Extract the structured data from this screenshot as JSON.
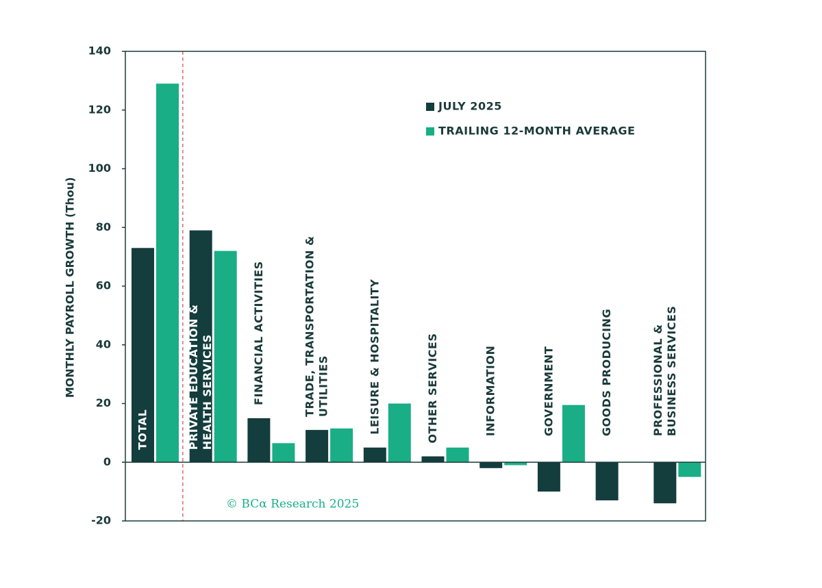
{
  "chart_data": {
    "type": "bar",
    "y_label": "MONTHLY PAYROLL GROWTH (Thou)",
    "categories": [
      "TOTAL",
      "PRIVATE EDUCATION &\nHEALTH SERVICES",
      "FINANCIAL ACTIVITIES",
      "TRADE, TRANSPORTATION &\nUTILITIES",
      "LEISURE & HOSPITALITY",
      "OTHER SERVICES",
      "INFORMATION",
      "GOVERNMENT",
      "GOODS PRODUCING",
      "PROFESSIONAL &\nBUSINESS SERVICES"
    ],
    "series": [
      {
        "name": "JULY 2025",
        "color": "#143d3d",
        "values": [
          73,
          79,
          15,
          11,
          5,
          2,
          -2,
          -10,
          -13,
          -14
        ]
      },
      {
        "name": "TRAILING 12-MONTH AVERAGE",
        "color": "#1aae86",
        "values": [
          129,
          72,
          6.5,
          11.5,
          20,
          5,
          -1,
          19.5,
          null,
          -5
        ]
      }
    ],
    "ylim": [
      -20,
      140
    ],
    "yticks": [
      -20,
      0,
      20,
      40,
      60,
      80,
      100,
      120,
      140
    ],
    "annotation": "© BCα Research 2025"
  }
}
